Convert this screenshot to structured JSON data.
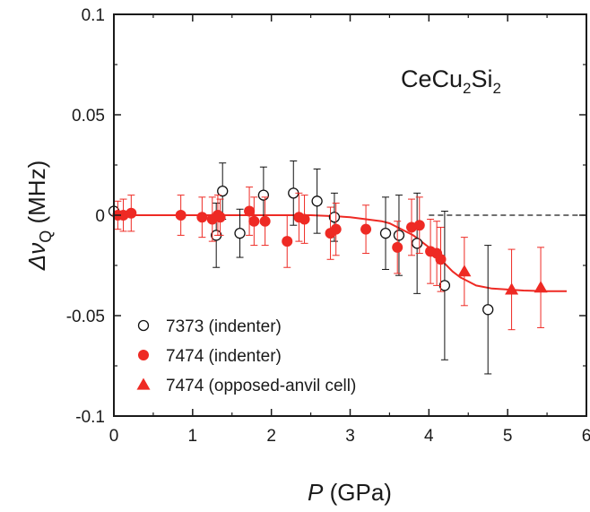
{
  "chart_data": {
    "type": "scatter",
    "annotation": {
      "main": "CeCu",
      "sub1": "2",
      "mid": "Si",
      "sub2": "2"
    },
    "xlabel": {
      "symbol": "P",
      "unit": " (GPa)"
    },
    "ylabel": {
      "delta": "Δ",
      "nu": "ν",
      "sub": "Q",
      "unit": " (MHz)"
    },
    "xlim": [
      0,
      6
    ],
    "ylim": [
      -0.1,
      0.1
    ],
    "xticks": [
      0,
      1,
      2,
      3,
      4,
      5,
      6
    ],
    "xtick_labels": [
      "0",
      "1",
      "2",
      "3",
      "4",
      "5",
      "6"
    ],
    "yticks": [
      -0.1,
      -0.05,
      0,
      0.05,
      0.1
    ],
    "ytick_labels": [
      "-0.1",
      "-0.05",
      "0",
      "0.05",
      "0.1"
    ],
    "legend_position": "bottom-left",
    "colors": {
      "red": "#ee2a24",
      "black": "#111111"
    },
    "series": [
      {
        "name": "7373 (indenter)",
        "marker": "open-circle",
        "color": "#111111",
        "points": [
          {
            "x": 0.0,
            "y": 0.002,
            "err": 0.0
          },
          {
            "x": 1.3,
            "y": -0.01,
            "err": 0.016
          },
          {
            "x": 1.38,
            "y": 0.012,
            "err": 0.014
          },
          {
            "x": 1.6,
            "y": -0.009,
            "err": 0.012
          },
          {
            "x": 1.9,
            "y": 0.01,
            "err": 0.014
          },
          {
            "x": 2.28,
            "y": 0.011,
            "err": 0.016
          },
          {
            "x": 2.58,
            "y": 0.007,
            "err": 0.016
          },
          {
            "x": 2.8,
            "y": -0.001,
            "err": 0.012
          },
          {
            "x": 3.45,
            "y": -0.009,
            "err": 0.018
          },
          {
            "x": 3.62,
            "y": -0.01,
            "err": 0.02
          },
          {
            "x": 3.85,
            "y": -0.014,
            "err": 0.025
          },
          {
            "x": 4.2,
            "y": -0.035,
            "err": 0.037
          },
          {
            "x": 4.75,
            "y": -0.047,
            "err": 0.032
          }
        ]
      },
      {
        "name": "7474 (indenter)",
        "marker": "filled-circle",
        "color": "#ee2a24",
        "points": [
          {
            "x": 0.05,
            "y": 0.0,
            "err": 0.007
          },
          {
            "x": 0.12,
            "y": 0.0,
            "err": 0.008
          },
          {
            "x": 0.22,
            "y": 0.001,
            "err": 0.009
          },
          {
            "x": 0.85,
            "y": 0.0,
            "err": 0.01
          },
          {
            "x": 1.12,
            "y": -0.001,
            "err": 0.01
          },
          {
            "x": 1.25,
            "y": -0.002,
            "err": 0.011
          },
          {
            "x": 1.32,
            "y": 0.0,
            "err": 0.01
          },
          {
            "x": 1.35,
            "y": -0.001,
            "err": 0.009
          },
          {
            "x": 1.72,
            "y": 0.002,
            "err": 0.012
          },
          {
            "x": 1.78,
            "y": -0.003,
            "err": 0.012
          },
          {
            "x": 1.92,
            "y": -0.003,
            "err": 0.012
          },
          {
            "x": 2.2,
            "y": -0.013,
            "err": 0.013
          },
          {
            "x": 2.35,
            "y": -0.001,
            "err": 0.012
          },
          {
            "x": 2.42,
            "y": -0.002,
            "err": 0.012
          },
          {
            "x": 2.75,
            "y": -0.009,
            "err": 0.013
          },
          {
            "x": 2.82,
            "y": -0.007,
            "err": 0.013
          },
          {
            "x": 3.2,
            "y": -0.007,
            "err": 0.012
          },
          {
            "x": 3.6,
            "y": -0.016,
            "err": 0.013
          },
          {
            "x": 3.78,
            "y": -0.006,
            "err": 0.014
          },
          {
            "x": 3.88,
            "y": -0.005,
            "err": 0.014
          },
          {
            "x": 4.02,
            "y": -0.018,
            "err": 0.016
          },
          {
            "x": 4.1,
            "y": -0.019,
            "err": 0.016
          },
          {
            "x": 4.15,
            "y": -0.022,
            "err": 0.016
          }
        ]
      },
      {
        "name": "7474 (opposed-anvil cell)",
        "marker": "filled-triangle",
        "color": "#ee2a24",
        "points": [
          {
            "x": 4.45,
            "y": -0.028,
            "err": 0.017
          },
          {
            "x": 5.05,
            "y": -0.037,
            "err": 0.02
          },
          {
            "x": 5.42,
            "y": -0.036,
            "err": 0.02
          }
        ]
      }
    ],
    "fit_line": {
      "color": "#ee2a24",
      "x": [
        0,
        0.5,
        1,
        1.5,
        2,
        2.5,
        2.8,
        3.0,
        3.2,
        3.4,
        3.5,
        3.6,
        3.7,
        3.8,
        3.9,
        4.0,
        4.1,
        4.2,
        4.3,
        4.4,
        4.5,
        4.6,
        4.8,
        5.0,
        5.2,
        5.5,
        5.75
      ],
      "y": [
        0,
        0,
        0,
        0,
        0,
        0,
        -0.0005,
        -0.001,
        -0.002,
        -0.003,
        -0.004,
        -0.006,
        -0.008,
        -0.01,
        -0.013,
        -0.016,
        -0.02,
        -0.024,
        -0.028,
        -0.031,
        -0.033,
        -0.035,
        -0.0365,
        -0.037,
        -0.0375,
        -0.0378,
        -0.0378
      ]
    },
    "reference_line": {
      "y": 0,
      "x_from": 4.0,
      "x_to": 6.0,
      "style": "dashed"
    }
  }
}
